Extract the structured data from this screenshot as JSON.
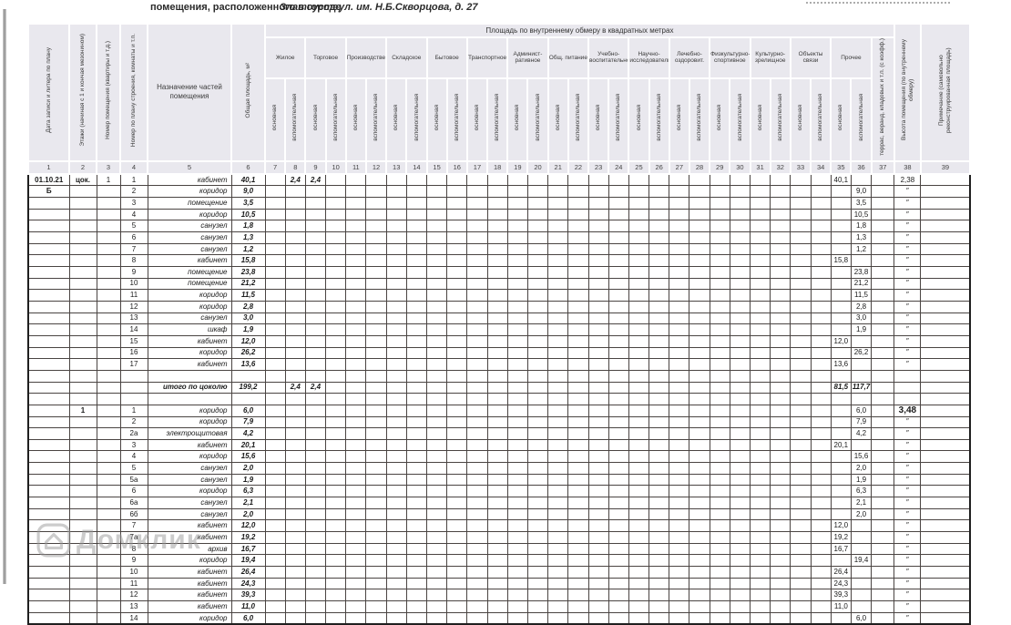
{
  "page": {
    "title_left": "помещения, расположенного в городе",
    "title_city": "Златоусте,",
    "title_address": "ул. им. Н.Б.Скворцова, д. 27",
    "watermark": "Домклик"
  },
  "table": {
    "area_title": "Площадь по внутреннему обмеру в квадратных метрах",
    "sub_main": "основная",
    "sub_aux": "вспомогательная",
    "left_headers": [
      "Дата записи и литера по плану",
      "Этажи (начиная с 1 и кончая мезонином)",
      "Номер помещения (квартиры и т.д.)",
      "Номер по плану строения, комнаты и т.п.",
      "Назначение частей помещения",
      "Общая площадь, м²"
    ],
    "categories": [
      "Жилое",
      "Торговое",
      "Производственное",
      "Складское",
      "Бытовое",
      "Транспортное",
      "Админист- ративное",
      "Общ. питание",
      "Учебно- воспитательное",
      "Научно- исследовательское",
      "Лечебно- оздоровит.",
      "Физкультурно- спортивное",
      "Культурно- зрелищное",
      "Объекты связи",
      "Прочее"
    ],
    "right_headers": [
      "террас, веранд, кладовых и т.п. (с коэфф.)",
      "Высота помещения (по внутреннему обмеру)",
      "Примечание (самовольно реконструированная площадь)"
    ],
    "col_numbers": [
      "1",
      "2",
      "3",
      "4",
      "5",
      "6",
      "7",
      "8",
      "9",
      "10",
      "11",
      "12",
      "13",
      "14",
      "15",
      "16",
      "17",
      "18",
      "19",
      "20",
      "21",
      "22",
      "23",
      "24",
      "25",
      "26",
      "27",
      "28",
      "29",
      "30",
      "31",
      "32",
      "33",
      "34",
      "35",
      "36",
      "37",
      "38",
      "39"
    ],
    "rows": [
      {
        "c1": "01.10.21",
        "c2": "цок.",
        "c3": "1",
        "c4": "1",
        "c5": "кабинет",
        "c6": "40,1",
        "c8": "2,4",
        "c9": "2,4",
        "c35": "40,1",
        "c38": "2,38"
      },
      {
        "c1": "Б",
        "c4": "2",
        "c5": "коридор",
        "c6": "9,0",
        "c36": "9,0",
        "c38": "″"
      },
      {
        "c4": "3",
        "c5": "помещение",
        "c6": "3,5",
        "c36": "3,5",
        "c38": "″"
      },
      {
        "c4": "4",
        "c5": "коридор",
        "c6": "10,5",
        "c36": "10,5",
        "c38": "″"
      },
      {
        "c4": "5",
        "c5": "санузел",
        "c6": "1,8",
        "c36": "1,8",
        "c38": "″"
      },
      {
        "c4": "6",
        "c5": "санузел",
        "c6": "1,3",
        "c36": "1,3",
        "c38": "″"
      },
      {
        "c4": "7",
        "c5": "санузел",
        "c6": "1,2",
        "c36": "1,2",
        "c38": "″"
      },
      {
        "c4": "8",
        "c5": "кабинет",
        "c6": "15,8",
        "c35": "15,8",
        "c38": "″"
      },
      {
        "c4": "9",
        "c5": "помещение",
        "c6": "23,8",
        "c36": "23,8",
        "c38": "″"
      },
      {
        "c4": "10",
        "c5": "помещение",
        "c6": "21,2",
        "c36": "21,2",
        "c38": "″"
      },
      {
        "c4": "11",
        "c5": "коридор",
        "c6": "11,5",
        "c36": "11,5",
        "c38": "″"
      },
      {
        "c4": "12",
        "c5": "коридор",
        "c6": "2,8",
        "c36": "2,8",
        "c38": "″"
      },
      {
        "c4": "13",
        "c5": "санузел",
        "c6": "3,0",
        "c36": "3,0",
        "c38": "″"
      },
      {
        "c4": "14",
        "c5": "шкаф",
        "c6": "1,9",
        "c36": "1,9",
        "c38": "″"
      },
      {
        "c4": "15",
        "c5": "кабинет",
        "c6": "12,0",
        "c35": "12,0",
        "c38": "″"
      },
      {
        "c4": "16",
        "c5": "коридор",
        "c6": "26,2",
        "c36": "26,2",
        "c38": "″"
      },
      {
        "c4": "17",
        "c5": "кабинет",
        "c6": "13,6",
        "c35": "13,6",
        "c38": "″"
      },
      {},
      {
        "c5": "итого по цоколю",
        "c6": "199,2",
        "c8": "2,4",
        "c9": "2,4",
        "c35": "81,5",
        "c36": "117,7",
        "total": true
      },
      {},
      {
        "c2": "1",
        "c4": "1",
        "c5": "коридор",
        "c6": "6,0",
        "c36": "6,0",
        "c38": "3,48",
        "big38": true
      },
      {
        "c4": "2",
        "c5": "коридор",
        "c6": "7,9",
        "c36": "7,9",
        "c38": "″"
      },
      {
        "c4": "2а",
        "c5": "электрощитовая",
        "c6": "4,2",
        "c36": "4,2",
        "c38": "″"
      },
      {
        "c4": "3",
        "c5": "кабинет",
        "c6": "20,1",
        "c35": "20,1",
        "c38": "″"
      },
      {
        "c4": "4",
        "c5": "коридор",
        "c6": "15,6",
        "c36": "15,6",
        "c38": "″"
      },
      {
        "c4": "5",
        "c5": "санузел",
        "c6": "2,0",
        "c36": "2,0",
        "c38": "″"
      },
      {
        "c4": "5а",
        "c5": "санузел",
        "c6": "1,9",
        "c36": "1,9",
        "c38": "″"
      },
      {
        "c4": "6",
        "c5": "коридор",
        "c6": "6,3",
        "c36": "6,3",
        "c38": "″"
      },
      {
        "c4": "6а",
        "c5": "санузел",
        "c6": "2,1",
        "c36": "2,1",
        "c38": "″"
      },
      {
        "c4": "6б",
        "c5": "санузел",
        "c6": "2,0",
        "c36": "2,0",
        "c38": "″"
      },
      {
        "c4": "7",
        "c5": "кабинет",
        "c6": "12,0",
        "c35": "12,0",
        "c38": "″"
      },
      {
        "c4": "7а",
        "c5": "кабинет",
        "c6": "19,2",
        "c35": "19,2",
        "c38": "″"
      },
      {
        "c4": "8",
        "c5": "архив",
        "c6": "16,7",
        "c35": "16,7",
        "c38": "″"
      },
      {
        "c4": "9",
        "c5": "коридор",
        "c6": "19,4",
        "c36": "19,4",
        "c38": "″"
      },
      {
        "c4": "10",
        "c5": "кабинет",
        "c6": "26,4",
        "c35": "26,4",
        "c38": "″"
      },
      {
        "c4": "11",
        "c5": "кабинет",
        "c6": "24,3",
        "c35": "24,3",
        "c38": "″"
      },
      {
        "c4": "12",
        "c5": "кабинет",
        "c6": "39,3",
        "c35": "39,3",
        "c38": "″"
      },
      {
        "c4": "13",
        "c5": "кабинет",
        "c6": "11,0",
        "c35": "11,0",
        "c38": "″"
      },
      {
        "c4": "14",
        "c5": "коридор",
        "c6": "6,0",
        "c36": "6,0",
        "c38": "″"
      }
    ]
  }
}
